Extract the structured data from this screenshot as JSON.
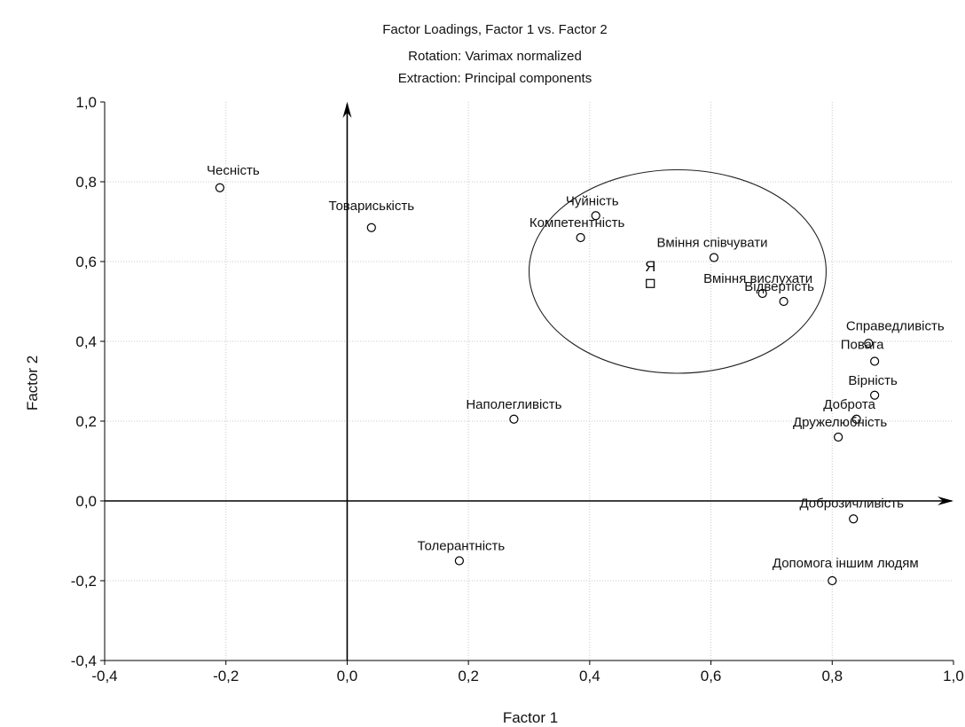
{
  "chart_data": {
    "type": "scatter",
    "title": "Factor Loadings, Factor 1 vs. Factor 2",
    "subtitle_lines": [
      "Rotation: Varimax normalized",
      "Extraction: Principal components"
    ],
    "xlabel": "Factor 1",
    "ylabel": "Factor 2",
    "xlim": [
      -0.4,
      1.0
    ],
    "ylim": [
      -0.4,
      1.0
    ],
    "x_ticks": [
      "-0,4",
      "-0,2",
      "0,0",
      "0,2",
      "0,4",
      "0,6",
      "0,8",
      "1,0"
    ],
    "y_ticks": [
      "-0,4",
      "-0,2",
      "0,0",
      "0,2",
      "0,4",
      "0,6",
      "0,8",
      "1,0"
    ],
    "grid": true,
    "points": [
      {
        "label": "Чесність",
        "x": -0.21,
        "y": 0.785
      },
      {
        "label": "Товариськість",
        "x": 0.04,
        "y": 0.685
      },
      {
        "label": "Чуйність",
        "x": 0.41,
        "y": 0.715
      },
      {
        "label": "Компетентність",
        "x": 0.385,
        "y": 0.66
      },
      {
        "label": "Вміння співчувати",
        "x": 0.605,
        "y": 0.61
      },
      {
        "label": "Вміння вислухати",
        "x": 0.685,
        "y": 0.52
      },
      {
        "label": "Відвертість",
        "x": 0.72,
        "y": 0.5
      },
      {
        "label": "Справедливість",
        "x": 0.86,
        "y": 0.395
      },
      {
        "label": "Повага",
        "x": 0.87,
        "y": 0.35
      },
      {
        "label": "Вірність",
        "x": 0.87,
        "y": 0.265
      },
      {
        "label": "Доброта",
        "x": 0.84,
        "y": 0.205
      },
      {
        "label": "Дружелюбність",
        "x": 0.81,
        "y": 0.16
      },
      {
        "label": "Наполегливість",
        "x": 0.275,
        "y": 0.205
      },
      {
        "label": "Доброзичливість",
        "x": 0.835,
        "y": -0.045
      },
      {
        "label": "Толерантність",
        "x": 0.185,
        "y": -0.15
      },
      {
        "label": "Допомога іншим людям",
        "x": 0.8,
        "y": -0.2
      }
    ],
    "self_marker": {
      "label": "Я",
      "x": 0.5,
      "y": 0.545
    },
    "ellipse": {
      "cx": 0.545,
      "cy": 0.575,
      "rx": 0.245,
      "ry": 0.255
    }
  }
}
